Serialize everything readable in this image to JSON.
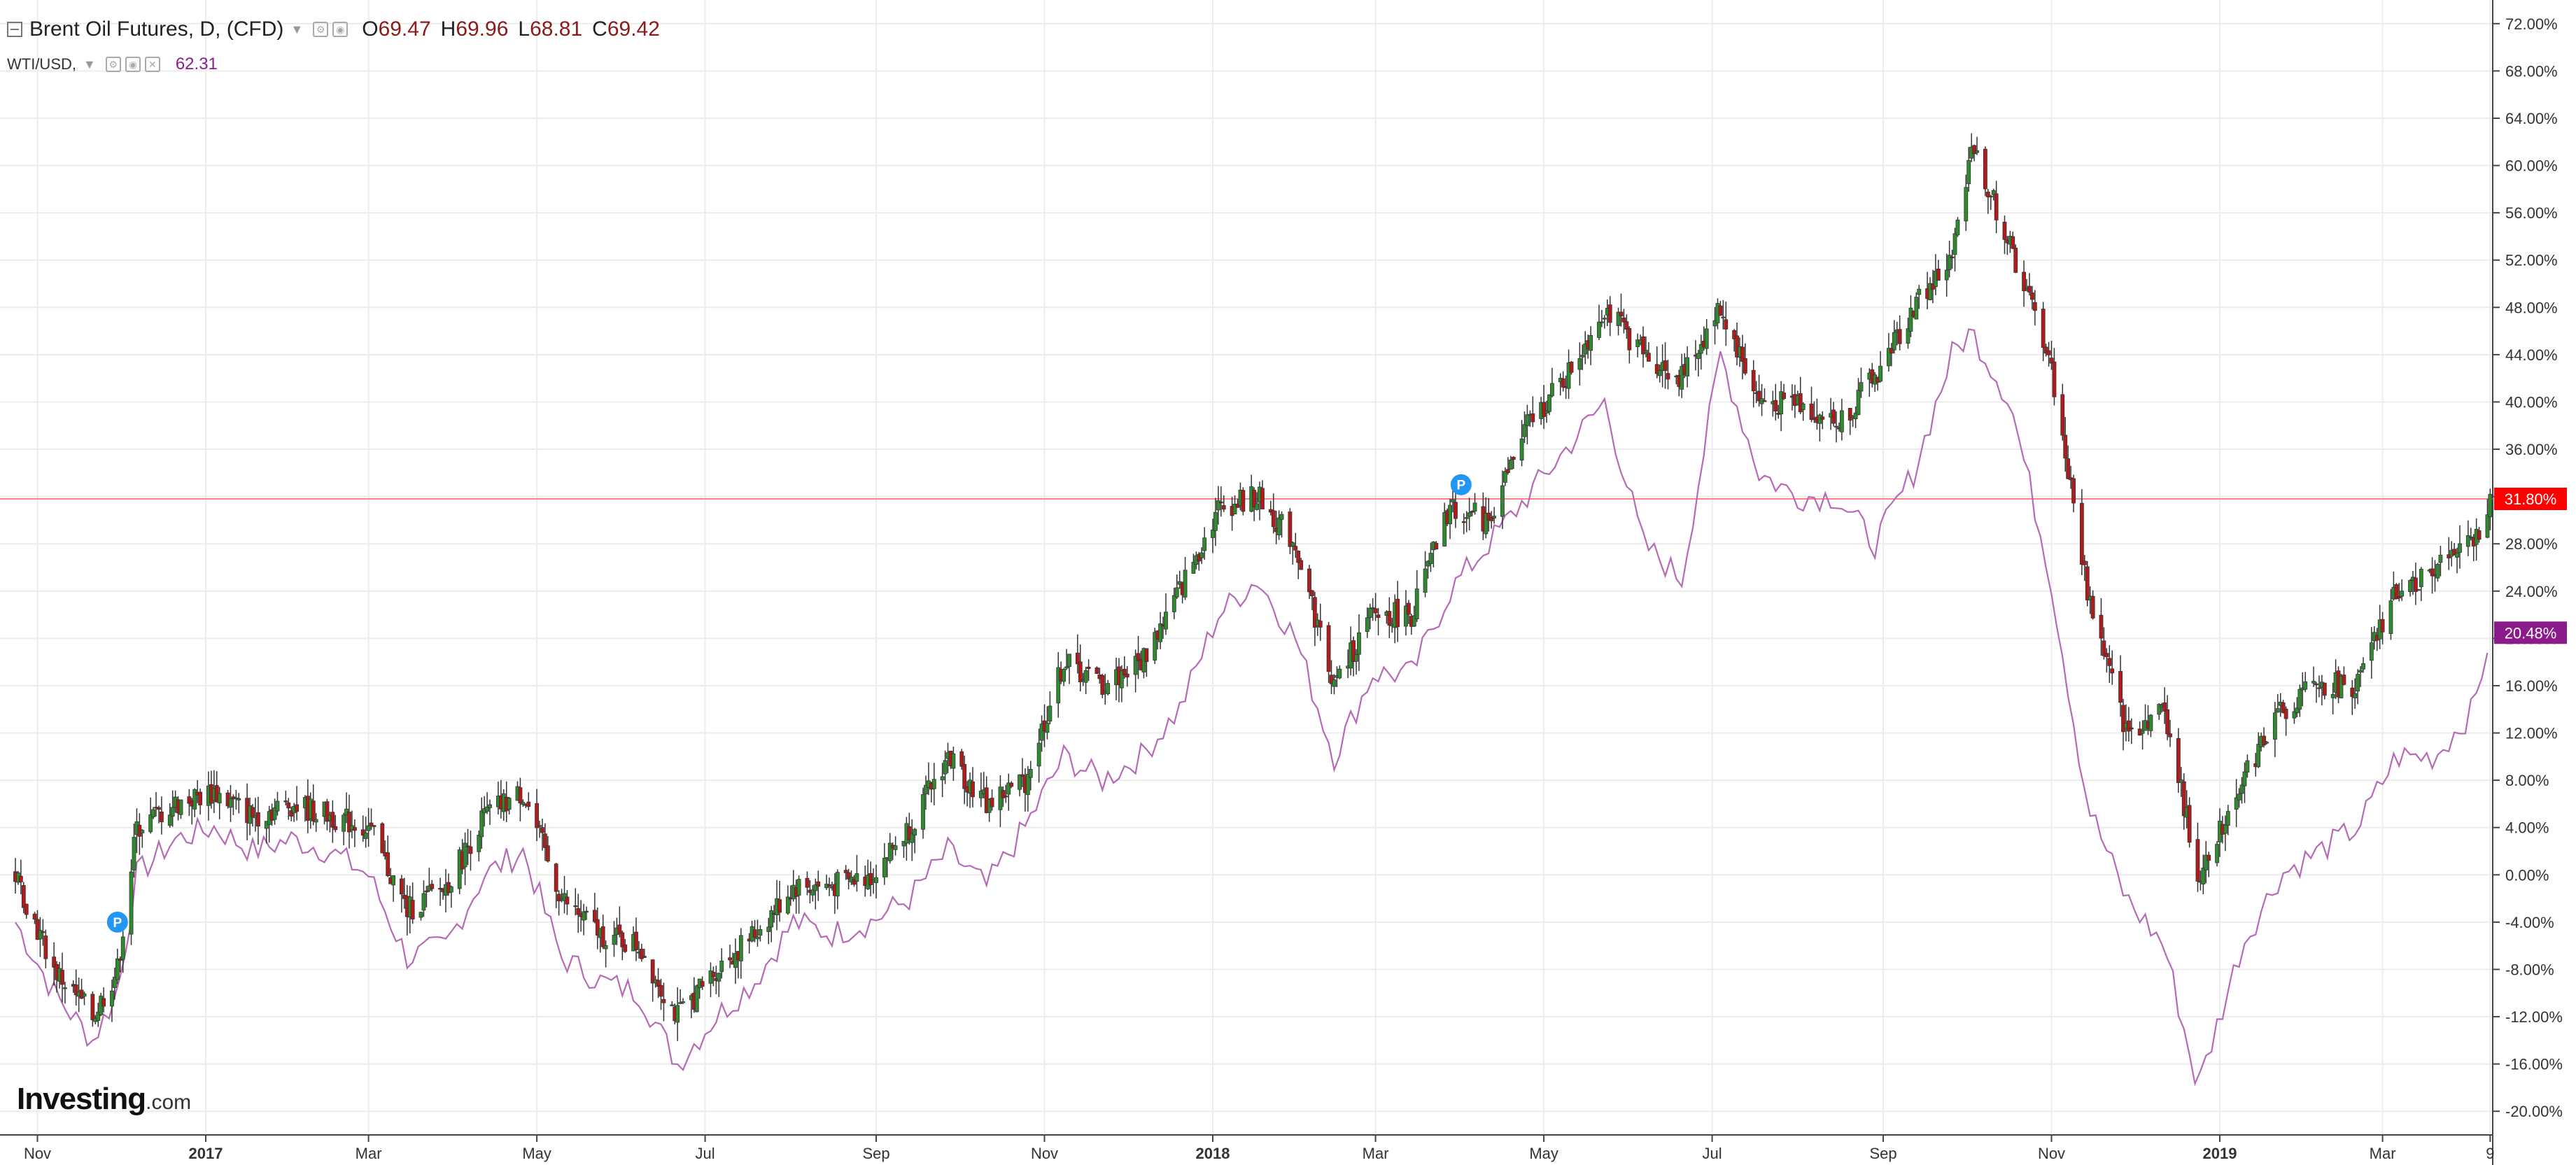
{
  "legend": {
    "main_title": "Brent Oil Futures, D, (CFD)",
    "open_label": "O",
    "open": "69.47",
    "high_label": "H",
    "high": "69.96",
    "low_label": "L",
    "low": "68.81",
    "close_label": "C",
    "close": "69.42",
    "compare_label": "WTI/USD,",
    "compare_value": "62.31"
  },
  "logo": {
    "text": "Investing",
    "suffix": ".com"
  },
  "colors": {
    "up": "#2e8b2e",
    "down": "#b31a1a",
    "compare_line": "#b56ab5",
    "current_line": "#ff8080",
    "brent_badge": "#ff0000",
    "wti_badge": "#8b1a8b",
    "marker": "#2196f3"
  },
  "chart_data": {
    "type": "line",
    "title": "Brent Oil Futures, D, (CFD)",
    "xlabel": "",
    "ylabel": "",
    "ylim": [
      -22,
      74
    ],
    "y_ticks": [
      "72.00%",
      "68.00%",
      "64.00%",
      "60.00%",
      "56.00%",
      "52.00%",
      "48.00%",
      "44.00%",
      "40.00%",
      "36.00%",
      "32.00%",
      "28.00%",
      "24.00%",
      "20.00%",
      "16.00%",
      "12.00%",
      "8.00%",
      "4.00%",
      "0.00%",
      "-4.00%",
      "-8.00%",
      "-12.00%",
      "-16.00%",
      "-20.00%"
    ],
    "y_tick_values": [
      72,
      68,
      64,
      60,
      56,
      52,
      48,
      44,
      40,
      36,
      32,
      28,
      24,
      20,
      16,
      12,
      8,
      4,
      0,
      -4,
      -8,
      -12,
      -16,
      -20
    ],
    "x_tick_labels": [
      {
        "label": "Nov",
        "date": "2016-11",
        "bold": false
      },
      {
        "label": "2017",
        "date": "2017-01",
        "bold": true
      },
      {
        "label": "Mar",
        "date": "2017-03",
        "bold": false
      },
      {
        "label": "May",
        "date": "2017-05",
        "bold": false
      },
      {
        "label": "Jul",
        "date": "2017-07",
        "bold": false
      },
      {
        "label": "Sep",
        "date": "2017-09",
        "bold": false
      },
      {
        "label": "Nov",
        "date": "2017-11",
        "bold": false
      },
      {
        "label": "2018",
        "date": "2018-01",
        "bold": true
      },
      {
        "label": "Mar",
        "date": "2018-03",
        "bold": false
      },
      {
        "label": "May",
        "date": "2018-05",
        "bold": false
      },
      {
        "label": "Jul",
        "date": "2018-07",
        "bold": false
      },
      {
        "label": "Sep",
        "date": "2018-09",
        "bold": false
      },
      {
        "label": "Nov",
        "date": "2018-11",
        "bold": false
      },
      {
        "label": "2019",
        "date": "2019-01",
        "bold": true
      },
      {
        "label": "Mar",
        "date": "2019-03",
        "bold": false
      },
      {
        "label": "9",
        "date": "2019-04-09",
        "bold": false
      }
    ],
    "current_badges": [
      {
        "series": "Brent Oil Futures",
        "label": "31.80%",
        "value": 31.8
      },
      {
        "series": "WTI/USD",
        "label": "20.48%",
        "value": 20.48
      }
    ],
    "markers": [
      {
        "label": "P",
        "date": "2016-11-30",
        "value": -4
      },
      {
        "label": "P",
        "date": "2018-04-01",
        "value": 33
      }
    ],
    "series": [
      {
        "name": "Brent Oil Futures",
        "style": "candlestick",
        "x": [
          "2016-10-24",
          "2016-11-07",
          "2016-11-21",
          "2016-11-30",
          "2016-12-07",
          "2016-12-21",
          "2017-01-04",
          "2017-01-18",
          "2017-02-01",
          "2017-02-15",
          "2017-03-01",
          "2017-03-15",
          "2017-03-29",
          "2017-04-12",
          "2017-04-26",
          "2017-05-10",
          "2017-05-24",
          "2017-06-07",
          "2017-06-21",
          "2017-07-05",
          "2017-07-19",
          "2017-08-02",
          "2017-08-16",
          "2017-08-30",
          "2017-09-13",
          "2017-09-27",
          "2017-10-11",
          "2017-10-25",
          "2017-11-08",
          "2017-11-22",
          "2017-12-06",
          "2017-12-20",
          "2018-01-03",
          "2018-01-17",
          "2018-01-31",
          "2018-02-14",
          "2018-02-28",
          "2018-03-14",
          "2018-03-28",
          "2018-04-11",
          "2018-04-25",
          "2018-05-09",
          "2018-05-23",
          "2018-06-06",
          "2018-06-20",
          "2018-07-04",
          "2018-07-18",
          "2018-08-01",
          "2018-08-15",
          "2018-08-29",
          "2018-09-12",
          "2018-09-26",
          "2018-10-03",
          "2018-10-17",
          "2018-10-31",
          "2018-11-14",
          "2018-11-28",
          "2018-12-12",
          "2018-12-24",
          "2019-01-09",
          "2019-01-23",
          "2019-02-06",
          "2019-02-20",
          "2019-03-06",
          "2019-03-20",
          "2019-04-03",
          "2019-04-09"
        ],
        "values": [
          0,
          -8,
          -12,
          -8,
          4,
          6,
          7,
          5,
          6,
          5,
          4,
          -3,
          -1,
          5,
          7,
          -2,
          -5,
          -6,
          -12,
          -8,
          -5,
          -1,
          -1,
          0,
          4,
          10,
          6,
          8,
          18,
          16,
          18,
          24,
          31,
          32,
          28,
          16,
          22,
          22,
          31,
          30,
          38,
          42,
          48,
          44,
          42,
          48,
          40,
          40,
          38,
          42,
          48,
          52,
          62,
          53,
          44,
          24,
          12,
          14,
          0,
          8,
          14,
          16,
          16,
          24,
          26,
          28,
          31.8
        ]
      },
      {
        "name": "WTI/USD",
        "style": "line",
        "x": [
          "2016-10-24",
          "2016-11-07",
          "2016-11-21",
          "2016-11-30",
          "2016-12-07",
          "2016-12-21",
          "2017-01-04",
          "2017-01-18",
          "2017-02-01",
          "2017-02-15",
          "2017-03-01",
          "2017-03-15",
          "2017-03-29",
          "2017-04-12",
          "2017-04-26",
          "2017-05-10",
          "2017-05-24",
          "2017-06-07",
          "2017-06-21",
          "2017-07-05",
          "2017-07-19",
          "2017-08-02",
          "2017-08-16",
          "2017-08-30",
          "2017-09-13",
          "2017-09-27",
          "2017-10-11",
          "2017-10-25",
          "2017-11-08",
          "2017-11-22",
          "2017-12-06",
          "2017-12-20",
          "2018-01-03",
          "2018-01-17",
          "2018-01-31",
          "2018-02-14",
          "2018-02-28",
          "2018-03-14",
          "2018-03-28",
          "2018-04-11",
          "2018-04-25",
          "2018-05-09",
          "2018-05-23",
          "2018-06-06",
          "2018-06-20",
          "2018-07-04",
          "2018-07-18",
          "2018-08-01",
          "2018-08-15",
          "2018-08-29",
          "2018-09-12",
          "2018-09-26",
          "2018-10-03",
          "2018-10-17",
          "2018-10-31",
          "2018-11-14",
          "2018-11-28",
          "2018-12-12",
          "2018-12-24",
          "2019-01-09",
          "2019-01-23",
          "2019-02-06",
          "2019-02-20",
          "2019-03-06",
          "2019-03-20",
          "2019-04-03",
          "2019-04-09"
        ],
        "values": [
          -4,
          -10,
          -14,
          -10,
          0,
          3,
          4,
          2,
          3,
          2,
          0,
          -7,
          -6,
          0,
          2,
          -7,
          -9,
          -10,
          -16,
          -12,
          -9,
          -4,
          -5,
          -4,
          -2,
          2,
          -1,
          4,
          10,
          8,
          10,
          14,
          22,
          25,
          20,
          10,
          17,
          17,
          24,
          28,
          32,
          36,
          40,
          28,
          25,
          44,
          34,
          32,
          32,
          28,
          34,
          44,
          46,
          40,
          26,
          6,
          -2,
          -6,
          -18,
          -6,
          0,
          2,
          4,
          10,
          10,
          14,
          20.48
        ]
      }
    ]
  }
}
